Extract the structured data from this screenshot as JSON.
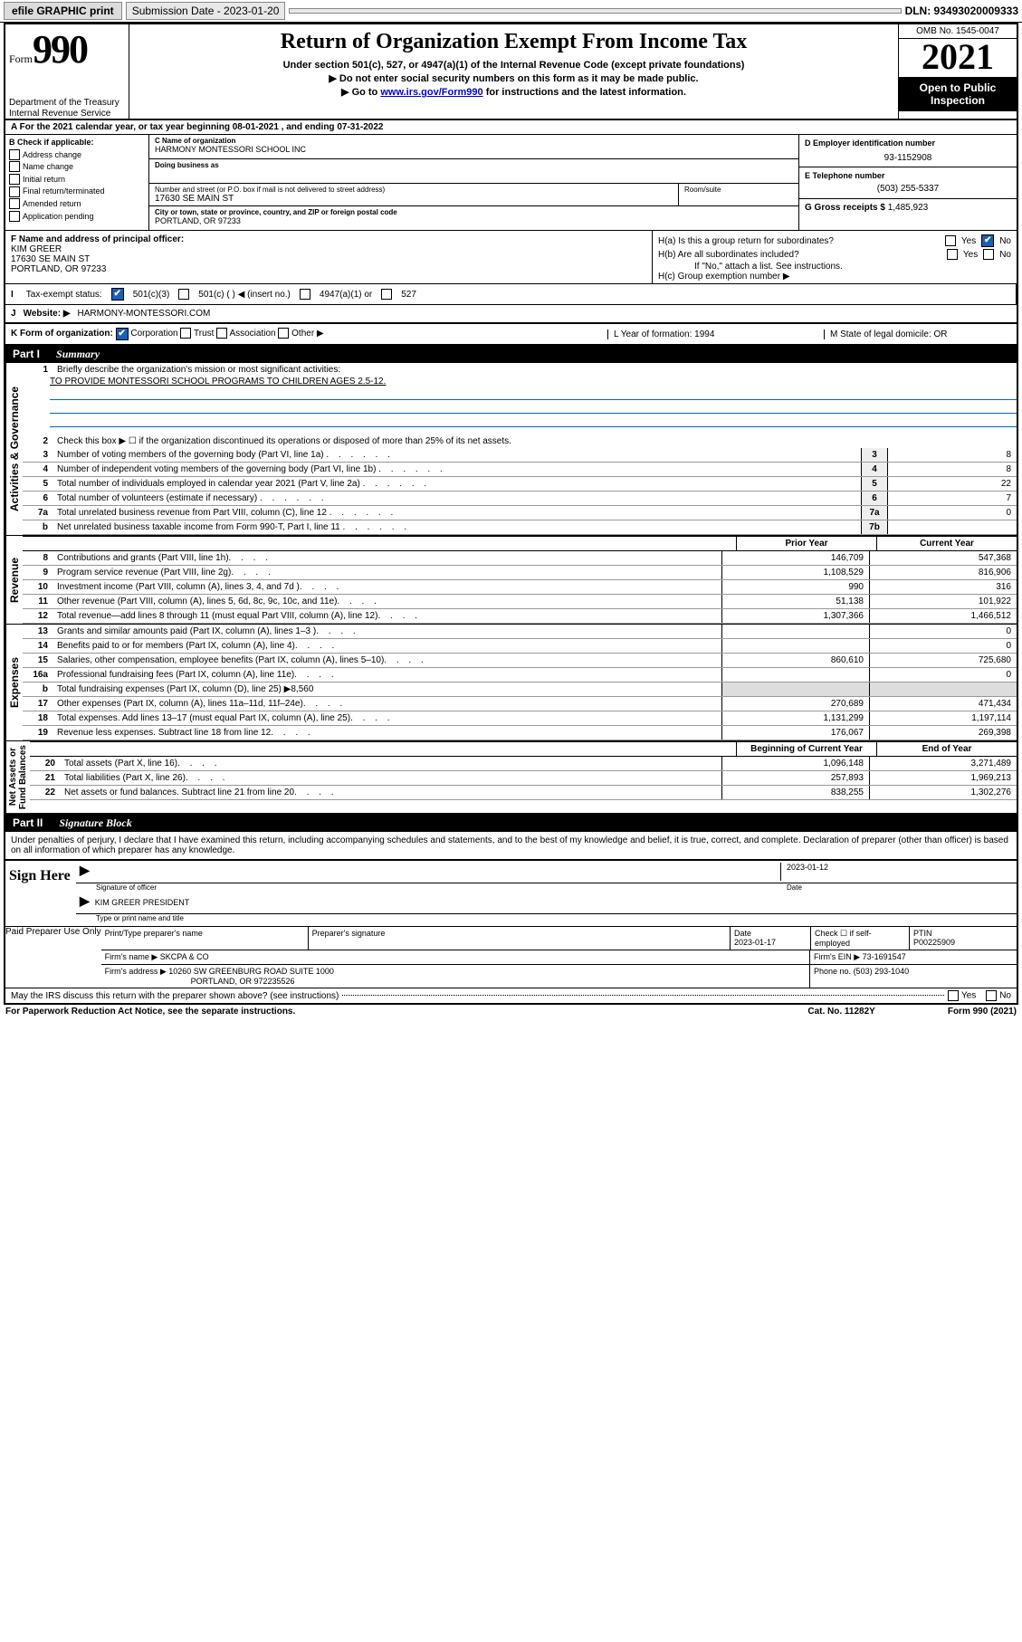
{
  "topbar": {
    "efile": "efile GRAPHIC print",
    "submission_label": "Submission Date - 2023-01-20",
    "dln": "DLN: 93493020009333"
  },
  "header": {
    "form_word": "Form",
    "form_num": "990",
    "title": "Return of Organization Exempt From Income Tax",
    "sub1": "Under section 501(c), 527, or 4947(a)(1) of the Internal Revenue Code (except private foundations)",
    "sub2": "▶ Do not enter social security numbers on this form as it may be made public.",
    "sub3_pre": "▶ Go to ",
    "sub3_link": "www.irs.gov/Form990",
    "sub3_post": " for instructions and the latest information.",
    "dept": "Department of the Treasury\nInternal Revenue Service",
    "omb": "OMB No. 1545-0047",
    "year": "2021",
    "open": "Open to Public Inspection"
  },
  "rowA": "A For the 2021 calendar year, or tax year beginning 08-01-2021    , and ending 07-31-2022",
  "secB": {
    "label": "B Check if applicable:",
    "opts": [
      "Address change",
      "Name change",
      "Initial return",
      "Final return/terminated",
      "Amended return",
      "Application pending"
    ],
    "c_label": "C Name of organization",
    "org": "HARMONY MONTESSORI SCHOOL INC",
    "dba_label": "Doing business as",
    "addr_label": "Number and street (or P.O. box if mail is not delivered to street address)",
    "suite_label": "Room/suite",
    "addr": "17630 SE MAIN ST",
    "city_label": "City or town, state or province, country, and ZIP or foreign postal code",
    "city": "PORTLAND, OR  97233",
    "d_label": "D Employer identification number",
    "ein": "93-1152908",
    "e_label": "E Telephone number",
    "phone": "(503) 255-5337",
    "g_label": "G Gross receipts $",
    "gross": "1,485,923"
  },
  "secF": {
    "label": "F Name and address of principal officer:",
    "name": "KIM GREER",
    "addr1": "17630 SE MAIN ST",
    "addr2": "PORTLAND, OR  97233"
  },
  "secH": {
    "ha": "H(a)  Is this a group return for subordinates?",
    "hb": "H(b)  Are all subordinates included?",
    "hb_note": "If \"No,\" attach a list. See instructions.",
    "hc": "H(c)  Group exemption number ▶",
    "yes": "Yes",
    "no": "No"
  },
  "secI": {
    "label": "Tax-exempt status:",
    "o1": "501(c)(3)",
    "o2": "501(c) (  ) ◀ (insert no.)",
    "o3": "4947(a)(1) or",
    "o4": "527"
  },
  "secJ": {
    "label": "J",
    "text": "Website: ▶",
    "val": "HARMONY-MONTESSORI.COM"
  },
  "secK": {
    "label": "K Form of organization:",
    "o1": "Corporation",
    "o2": "Trust",
    "o3": "Association",
    "o4": "Other ▶",
    "l": "L Year of formation: 1994",
    "m": "M State of legal domicile: OR"
  },
  "part1": {
    "tag": "Part I",
    "title": "Summary"
  },
  "vtabs": {
    "ag": "Activities & Governance",
    "rev": "Revenue",
    "exp": "Expenses",
    "na": "Net Assets or\nFund Balances"
  },
  "q1": {
    "num": "1",
    "txt": "Briefly describe the organization's mission or most significant activities:",
    "mission": "TO PROVIDE MONTESSORI SCHOOL PROGRAMS TO CHILDREN AGES 2.5-12."
  },
  "q2": {
    "num": "2",
    "txt": "Check this box ▶ ☐  if the organization discontinued its operations or disposed of more than 25% of its net assets."
  },
  "gov_rows": [
    {
      "num": "3",
      "txt": "Number of voting members of the governing body (Part VI, line 1a)",
      "box": "3",
      "val": "8"
    },
    {
      "num": "4",
      "txt": "Number of independent voting members of the governing body (Part VI, line 1b)",
      "box": "4",
      "val": "8"
    },
    {
      "num": "5",
      "txt": "Total number of individuals employed in calendar year 2021 (Part V, line 2a)",
      "box": "5",
      "val": "22"
    },
    {
      "num": "6",
      "txt": "Total number of volunteers (estimate if necessary)",
      "box": "6",
      "val": "7"
    },
    {
      "num": "7a",
      "txt": "Total unrelated business revenue from Part VIII, column (C), line 12",
      "box": "7a",
      "val": "0"
    },
    {
      "num": "b",
      "txt": "Net unrelated business taxable income from Form 990-T, Part I, line 11",
      "box": "7b",
      "val": ""
    }
  ],
  "fin_header": {
    "c1": "Prior Year",
    "c2": "Current Year"
  },
  "rev_rows": [
    {
      "num": "8",
      "txt": "Contributions and grants (Part VIII, line 1h)",
      "c1": "146,709",
      "c2": "547,368"
    },
    {
      "num": "9",
      "txt": "Program service revenue (Part VIII, line 2g)",
      "c1": "1,108,529",
      "c2": "816,906"
    },
    {
      "num": "10",
      "txt": "Investment income (Part VIII, column (A), lines 3, 4, and 7d )",
      "c1": "990",
      "c2": "316"
    },
    {
      "num": "11",
      "txt": "Other revenue (Part VIII, column (A), lines 5, 6d, 8c, 9c, 10c, and 11e)",
      "c1": "51,138",
      "c2": "101,922"
    },
    {
      "num": "12",
      "txt": "Total revenue—add lines 8 through 11 (must equal Part VIII, column (A), line 12)",
      "c1": "1,307,366",
      "c2": "1,466,512"
    }
  ],
  "exp_rows": [
    {
      "num": "13",
      "txt": "Grants and similar amounts paid (Part IX, column (A), lines 1–3 )",
      "c1": "",
      "c2": "0"
    },
    {
      "num": "14",
      "txt": "Benefits paid to or for members (Part IX, column (A), line 4)",
      "c1": "",
      "c2": "0"
    },
    {
      "num": "15",
      "txt": "Salaries, other compensation, employee benefits (Part IX, column (A), lines 5–10)",
      "c1": "860,610",
      "c2": "725,680"
    },
    {
      "num": "16a",
      "txt": "Professional fundraising fees (Part IX, column (A), line 11e)",
      "c1": "",
      "c2": "0"
    },
    {
      "num": "b",
      "txt_html": "Total fundraising expenses (Part IX, column (D), line 25) ▶8,560",
      "c1": "",
      "c2": "",
      "shade": true
    },
    {
      "num": "17",
      "txt": "Other expenses (Part IX, column (A), lines 11a–11d, 11f–24e)",
      "c1": "270,689",
      "c2": "471,434"
    },
    {
      "num": "18",
      "txt": "Total expenses. Add lines 13–17 (must equal Part IX, column (A), line 25)",
      "c1": "1,131,299",
      "c2": "1,197,114"
    },
    {
      "num": "19",
      "txt": "Revenue less expenses. Subtract line 18 from line 12",
      "c1": "176,067",
      "c2": "269,398"
    }
  ],
  "na_header": {
    "c1": "Beginning of Current Year",
    "c2": "End of Year"
  },
  "na_rows": [
    {
      "num": "20",
      "txt": "Total assets (Part X, line 16)",
      "c1": "1,096,148",
      "c2": "3,271,489"
    },
    {
      "num": "21",
      "txt": "Total liabilities (Part X, line 26)",
      "c1": "257,893",
      "c2": "1,969,213"
    },
    {
      "num": "22",
      "txt": "Net assets or fund balances. Subtract line 21 from line 20",
      "c1": "838,255",
      "c2": "1,302,276"
    }
  ],
  "part2": {
    "tag": "Part II",
    "title": "Signature Block"
  },
  "penalty": "Under penalties of perjury, I declare that I have examined this return, including accompanying schedules and statements, and to the best of my knowledge and belief, it is true, correct, and complete. Declaration of preparer (other than officer) is based on all information of which preparer has any knowledge.",
  "sign": {
    "here": "Sign Here",
    "sig_label": "Signature of officer",
    "date": "2023-01-12",
    "date_label": "Date",
    "name": "KIM GREER  PRESIDENT",
    "name_label": "Type or print name and title"
  },
  "prep": {
    "title": "Paid Preparer Use Only",
    "h1": "Print/Type preparer's name",
    "h2": "Preparer's signature",
    "h3": "Date",
    "h3v": "2023-01-17",
    "h4": "Check ☐ if self-employed",
    "h5": "PTIN",
    "h5v": "P00225909",
    "firm_label": "Firm's name    ▶",
    "firm": "SKCPA & CO",
    "ein_label": "Firm's EIN ▶",
    "ein": "73-1691547",
    "addr_label": "Firm's address ▶",
    "addr1": "10260 SW GREENBURG ROAD SUITE 1000",
    "addr2": "PORTLAND, OR  972235526",
    "phone_label": "Phone no.",
    "phone": "(503) 293-1040"
  },
  "discuss": "May the IRS discuss this return with the preparer shown above? (see instructions)",
  "footer": {
    "pra": "For Paperwork Reduction Act Notice, see the separate instructions.",
    "cat": "Cat. No. 11282Y",
    "form": "Form 990 (2021)"
  }
}
